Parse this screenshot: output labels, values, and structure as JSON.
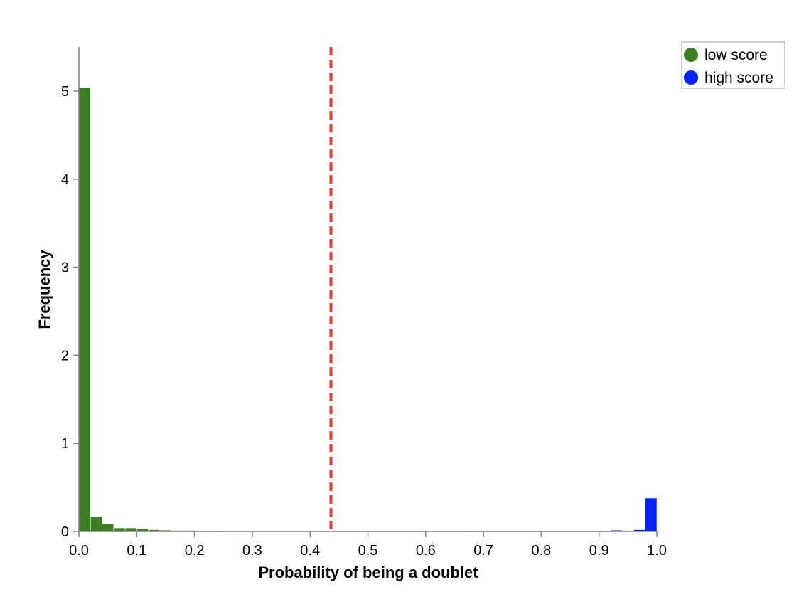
{
  "chart_data": {
    "type": "bar",
    "xlabel": "Probability of being a doublet",
    "ylabel": "Frequency",
    "xlim": [
      0,
      1
    ],
    "ylim": [
      0,
      5.5
    ],
    "x_ticks": [
      "0.0",
      "0.1",
      "0.2",
      "0.3",
      "0.4",
      "0.5",
      "0.6",
      "0.7",
      "0.8",
      "0.9",
      "1.0"
    ],
    "y_ticks": [
      "0",
      "1",
      "2",
      "3",
      "4",
      "5"
    ],
    "bin_width": 0.02,
    "threshold": 0.436,
    "legend": {
      "placement": "top-right"
    },
    "colors": {
      "low": "#3a7d22",
      "high": "#0022ff",
      "threshold": "#e8392f",
      "axis": "#808080"
    },
    "series": [
      {
        "name": "low score",
        "bins": [
          [
            0.0,
            5.04
          ],
          [
            0.02,
            0.17
          ],
          [
            0.04,
            0.09
          ],
          [
            0.06,
            0.04
          ],
          [
            0.08,
            0.04
          ],
          [
            0.1,
            0.03
          ],
          [
            0.12,
            0.02
          ],
          [
            0.14,
            0.015
          ],
          [
            0.16,
            0.012
          ],
          [
            0.18,
            0.012
          ],
          [
            0.2,
            0.01
          ],
          [
            0.22,
            0.01
          ],
          [
            0.24,
            0.008
          ],
          [
            0.26,
            0.006
          ],
          [
            0.28,
            0.006
          ],
          [
            0.3,
            0.006
          ],
          [
            0.32,
            0.008
          ],
          [
            0.34,
            0.005
          ],
          [
            0.36,
            0.005
          ],
          [
            0.38,
            0.006
          ],
          [
            0.4,
            0.005
          ],
          [
            0.42,
            0.004
          ]
        ]
      },
      {
        "name": "high score",
        "bins": [
          [
            0.44,
            0.004
          ],
          [
            0.46,
            0.002
          ],
          [
            0.48,
            0.002
          ],
          [
            0.5,
            0.004
          ],
          [
            0.52,
            0.003
          ],
          [
            0.54,
            0.002
          ],
          [
            0.56,
            0.003
          ],
          [
            0.58,
            0.002
          ],
          [
            0.6,
            0.002
          ],
          [
            0.62,
            0.004
          ],
          [
            0.64,
            0.004
          ],
          [
            0.66,
            0.004
          ],
          [
            0.68,
            0.004
          ],
          [
            0.7,
            0.003
          ],
          [
            0.72,
            0.002
          ],
          [
            0.74,
            0.002
          ],
          [
            0.76,
            0.003
          ],
          [
            0.78,
            0.003
          ],
          [
            0.8,
            0.003
          ],
          [
            0.82,
            0.003
          ],
          [
            0.84,
            0.002
          ],
          [
            0.86,
            0.003
          ],
          [
            0.88,
            0.002
          ],
          [
            0.9,
            0.005
          ],
          [
            0.92,
            0.015
          ],
          [
            0.94,
            0.006
          ],
          [
            0.96,
            0.02
          ],
          [
            0.98,
            0.38
          ]
        ]
      }
    ]
  }
}
